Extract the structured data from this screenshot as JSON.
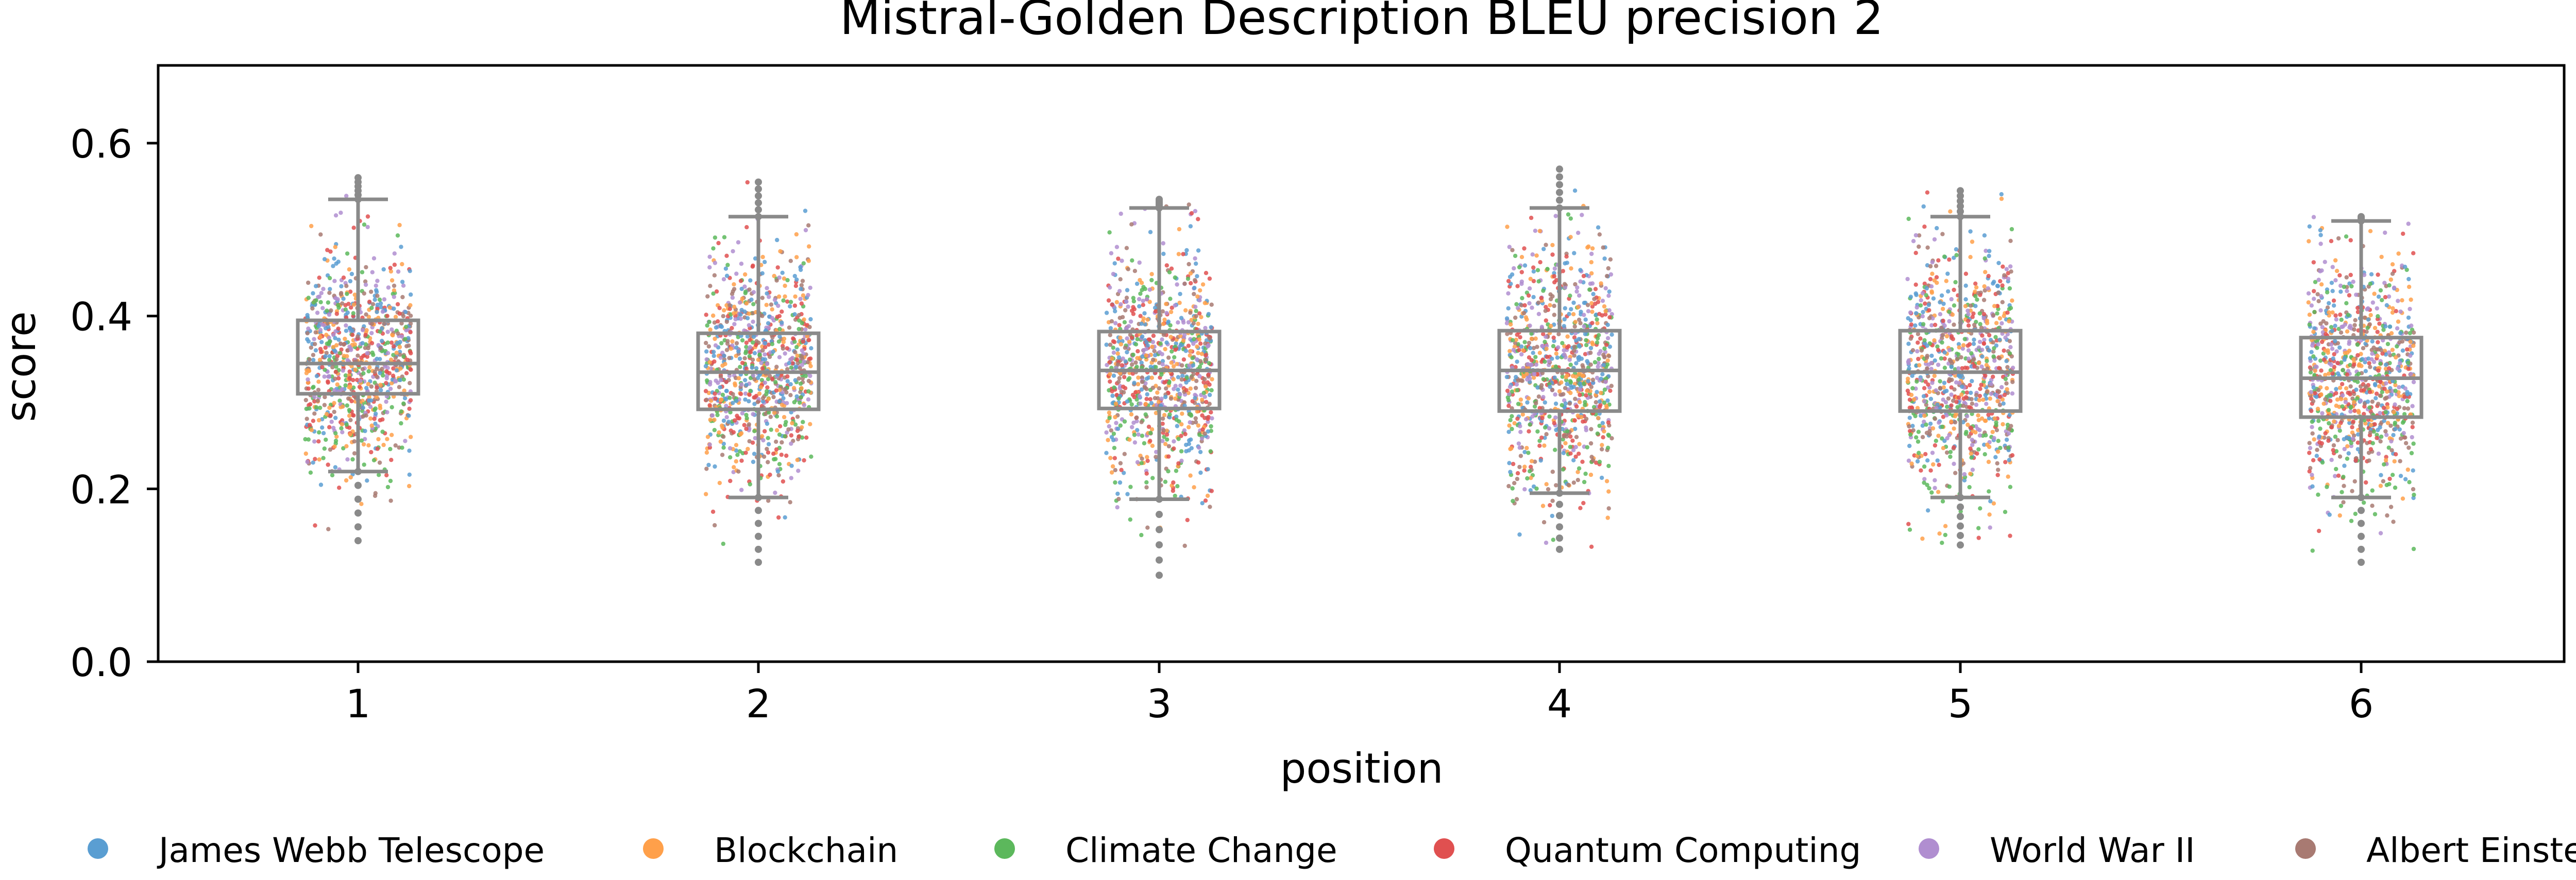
{
  "chart_data": {
    "type": "box-strip",
    "title": "Mistral-Golden Description BLEU precision 2",
    "xlabel": "position",
    "ylabel": "score",
    "categories": [
      "1",
      "2",
      "3",
      "4",
      "5",
      "6"
    ],
    "ylim": [
      0,
      0.69
    ],
    "yticks": [
      "0.0",
      "0.2",
      "0.4",
      "0.6"
    ],
    "grid": false,
    "legend_position": "bottom",
    "series": [
      {
        "name": "James Webb Telescope",
        "color": "#5a9ed2"
      },
      {
        "name": "Blockchain",
        "color": "#ffa04a"
      },
      {
        "name": "Climate Change",
        "color": "#5cb85c"
      },
      {
        "name": "Quantum Computing",
        "color": "#e05050"
      },
      {
        "name": "World War II",
        "color": "#b08ed0"
      },
      {
        "name": "Albert Einstein",
        "color": "#a87a72"
      }
    ],
    "boxes": [
      {
        "position": "1",
        "whisker_low": 0.22,
        "q1": 0.31,
        "median": 0.345,
        "q3": 0.395,
        "whisker_high": 0.535,
        "min": 0.14,
        "max": 0.56
      },
      {
        "position": "2",
        "whisker_low": 0.19,
        "q1": 0.292,
        "median": 0.335,
        "q3": 0.38,
        "whisker_high": 0.515,
        "min": 0.115,
        "max": 0.555
      },
      {
        "position": "3",
        "whisker_low": 0.188,
        "q1": 0.293,
        "median": 0.337,
        "q3": 0.382,
        "whisker_high": 0.525,
        "min": 0.1,
        "max": 0.535
      },
      {
        "position": "4",
        "whisker_low": 0.195,
        "q1": 0.29,
        "median": 0.337,
        "q3": 0.383,
        "whisker_high": 0.525,
        "min": 0.13,
        "max": 0.57
      },
      {
        "position": "5",
        "whisker_low": 0.19,
        "q1": 0.29,
        "median": 0.335,
        "q3": 0.383,
        "whisker_high": 0.515,
        "min": 0.135,
        "max": 0.545
      },
      {
        "position": "6",
        "whisker_low": 0.19,
        "q1": 0.283,
        "median": 0.328,
        "q3": 0.375,
        "whisker_high": 0.51,
        "min": 0.115,
        "max": 0.515
      }
    ]
  }
}
